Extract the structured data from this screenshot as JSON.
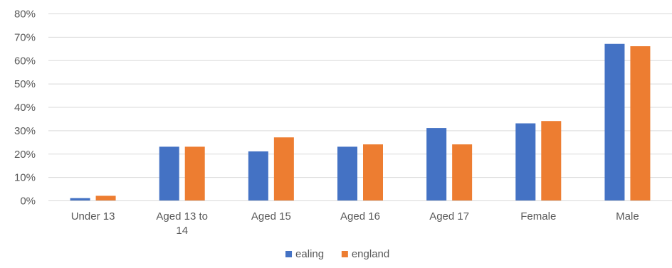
{
  "chart_data": {
    "type": "bar",
    "title": "",
    "xlabel": "",
    "ylabel": "",
    "categories": [
      "Under 13",
      "Aged 13 to 14",
      "Aged 15",
      "Aged 16",
      "Aged 17",
      "Female",
      "Male"
    ],
    "category_lines": [
      [
        "Under 13"
      ],
      [
        "Aged 13 to",
        "14"
      ],
      [
        "Aged 15"
      ],
      [
        "Aged 16"
      ],
      [
        "Aged 17"
      ],
      [
        "Female"
      ],
      [
        "Male"
      ]
    ],
    "series": [
      {
        "name": "ealing",
        "color": "#4472c4",
        "values": [
          1,
          23,
          21,
          23,
          31,
          33,
          67
        ]
      },
      {
        "name": "england",
        "color": "#ed7d31",
        "values": [
          2,
          23,
          27,
          24,
          24,
          34,
          66
        ]
      }
    ],
    "ylim": [
      0,
      80
    ],
    "yticks": [
      0,
      10,
      20,
      30,
      40,
      50,
      60,
      70,
      80
    ],
    "ytick_labels": [
      "0%",
      "10%",
      "20%",
      "30%",
      "40%",
      "50%",
      "60%",
      "70%",
      "80%"
    ],
    "value_format": "percent",
    "grid": true,
    "legend": "bottom-center"
  }
}
